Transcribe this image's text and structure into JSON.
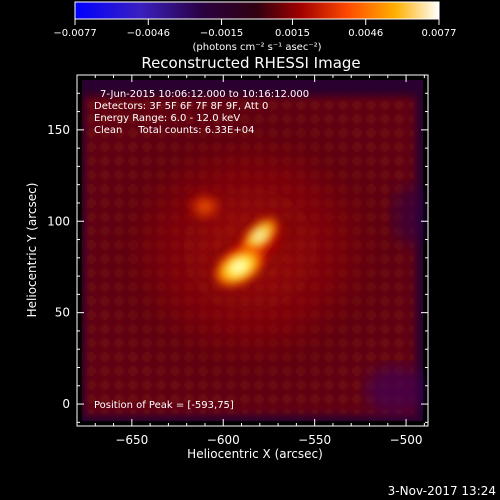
{
  "chart_data": {
    "type": "heatmap",
    "title": "Reconstructed RHESSI Image",
    "xlabel": "Heliocentric X (arcsec)",
    "ylabel": "Heliocentric Y (arcsec)",
    "xlim": [
      -680,
      -488
    ],
    "ylim": [
      -12,
      180
    ],
    "x_ticks": [
      -650,
      -600,
      -550,
      -500
    ],
    "x_tick_labels": [
      "−650",
      "−600",
      "−550",
      "−500"
    ],
    "y_ticks": [
      0,
      50,
      100,
      150
    ],
    "y_tick_labels": [
      "0",
      "50",
      "100",
      "150"
    ],
    "colorbar": {
      "min": -0.0077,
      "max": 0.0077,
      "ticks": [
        -0.0077,
        -0.0046,
        -0.0015,
        0.0015,
        0.0046,
        0.0077
      ],
      "tick_labels": [
        "−0.0077",
        "−0.0046",
        "−0.0015",
        "0.0015",
        "0.0046",
        "0.0077"
      ],
      "unit": "(photons cm⁻² s⁻¹ asec⁻²)",
      "colormap": "rainbow-blue-purple-red-yellow-white"
    },
    "sources": [
      {
        "x": -593,
        "y": 75,
        "relative_intensity": 1.0,
        "label": "peak"
      },
      {
        "x": -580,
        "y": 92,
        "relative_intensity": 0.6
      },
      {
        "x": -610,
        "y": 108,
        "relative_intensity": 0.45
      }
    ],
    "annotations": [
      "7-Jun-2015 10:06:12.000 to 10:16:12.000",
      "Detectors: 3F 5F 6F 7F 8F 9F, Att 0",
      "Energy Range: 6.0 - 12.0 keV",
      "Clean     Total counts: 6.33E+04",
      "Position of Peak = [-593,75]"
    ],
    "timestamp": "3-Nov-2017 13:24",
    "grid": false
  },
  "colors": {
    "background": "#000000",
    "text": "#ffffff",
    "colormap_stops": [
      "#0000ff",
      "#3020b0",
      "#2a0040",
      "#500020",
      "#b00000",
      "#ff5000",
      "#ffb000",
      "#ffff80",
      "#ffffff"
    ]
  }
}
